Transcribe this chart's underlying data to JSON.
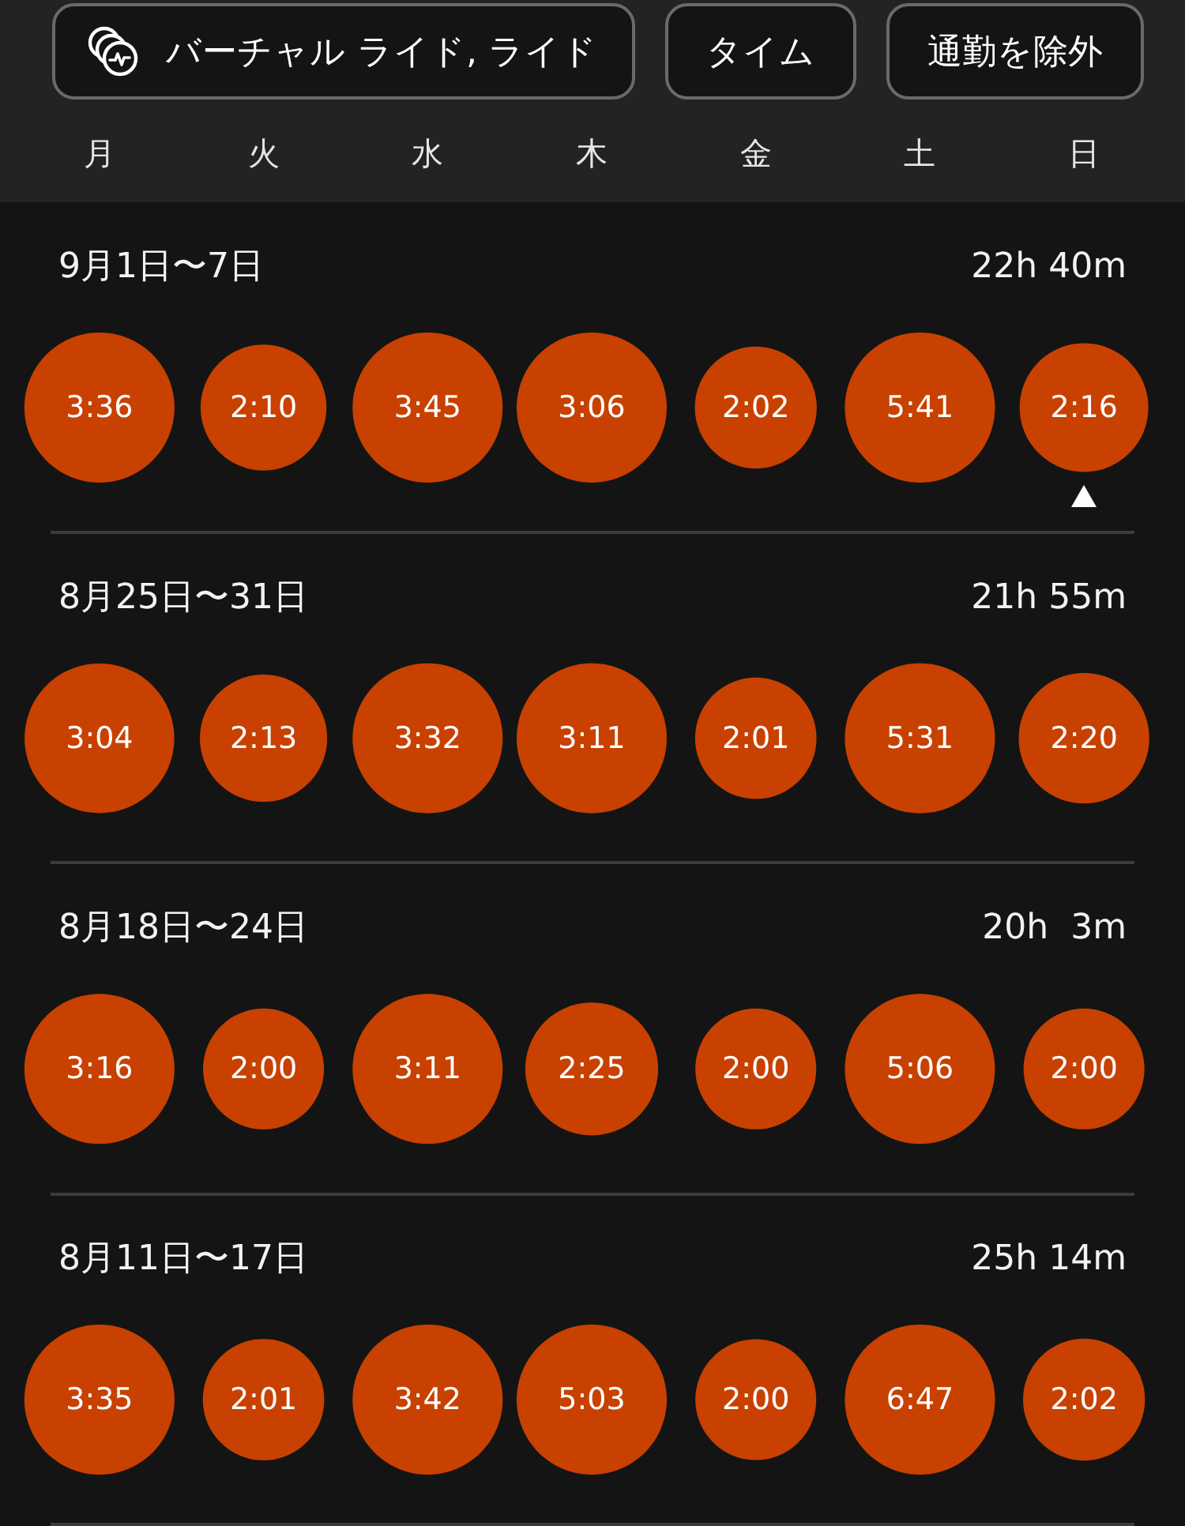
{
  "chart_data": {
    "type": "other",
    "annotations": [
      "バーチャル ライド, ライド",
      "タイム",
      "通勤を除外"
    ],
    "categories": [
      "月",
      "火",
      "水",
      "木",
      "金",
      "土",
      "日"
    ],
    "series": [
      {
        "name": "9月1日〜7日",
        "color": "#c84100",
        "values": [
          216,
          130,
          225,
          186,
          122,
          341,
          136
        ],
        "value_labels": [
          "3:36",
          "2:10",
          "3:45",
          "3:06",
          "2:02",
          "5:41",
          "2:16"
        ]
      },
      {
        "name": "8月25日〜31日",
        "color": "#c84100",
        "values": [
          184,
          133,
          212,
          191,
          121,
          331,
          140
        ],
        "value_labels": [
          "3:04",
          "2:13",
          "3:32",
          "3:11",
          "2:01",
          "5:31",
          "2:20"
        ]
      },
      {
        "name": "8月18日〜24日",
        "color": "#c84100",
        "values": [
          196,
          120,
          191,
          145,
          120,
          306,
          120
        ],
        "value_labels": [
          "3:16",
          "2:00",
          "3:11",
          "2:25",
          "2:00",
          "5:06",
          "2:00"
        ]
      },
      {
        "name": "8月11日〜17日",
        "color": "#c84100",
        "values": [
          215,
          121,
          222,
          303,
          120,
          407,
          122
        ],
        "value_labels": [
          "3:35",
          "2:01",
          "3:42",
          "5:03",
          "2:00",
          "6:47",
          "2:02"
        ]
      }
    ],
    "totals": [
      "22h 40m",
      "21h 55m",
      "20h  3m",
      "25h 14m"
    ]
  }
}
